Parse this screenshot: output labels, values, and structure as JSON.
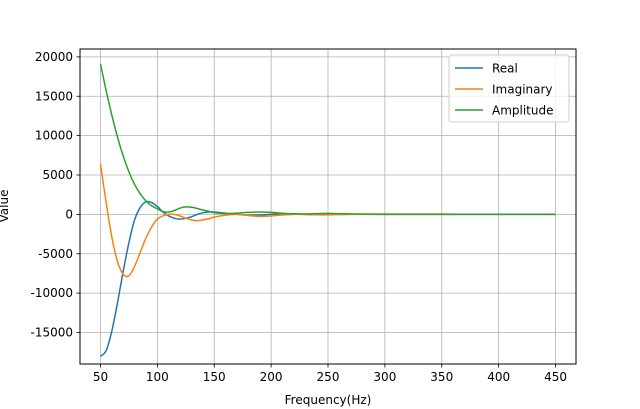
{
  "chart_data": {
    "type": "line",
    "title": "",
    "xlabel": "Frequency(Hz)",
    "ylabel": "Value",
    "xlim": [
      32,
      468
    ],
    "ylim": [
      -19000,
      21000
    ],
    "grid": true,
    "legend_position": "top-right",
    "x_ticks": [
      50,
      100,
      150,
      200,
      250,
      300,
      350,
      400,
      450
    ],
    "y_ticks": [
      -15000,
      -10000,
      -5000,
      0,
      5000,
      10000,
      15000,
      20000
    ],
    "x": [
      50,
      55,
      60,
      65,
      70,
      75,
      80,
      85,
      90,
      95,
      100,
      105,
      110,
      115,
      120,
      125,
      130,
      135,
      140,
      145,
      150,
      160,
      170,
      180,
      190,
      200,
      210,
      220,
      230,
      240,
      250,
      260,
      270,
      280,
      300,
      325,
      350,
      375,
      400,
      425,
      450
    ],
    "series": [
      {
        "name": "Real",
        "color": "#1f77b4",
        "values": [
          -18000,
          -17300,
          -14800,
          -11200,
          -7200,
          -3600,
          -700,
          900,
          1600,
          1500,
          1000,
          300,
          -200,
          -500,
          -600,
          -500,
          -300,
          0,
          200,
          300,
          300,
          150,
          0,
          -100,
          -80,
          0,
          60,
          40,
          0,
          -30,
          -20,
          0,
          20,
          10,
          0,
          0,
          0,
          0,
          0,
          0,
          0
        ]
      },
      {
        "name": "Imaginary",
        "color": "#ff7f0e",
        "values": [
          6400,
          1500,
          -2900,
          -6000,
          -7600,
          -7800,
          -6600,
          -4800,
          -3000,
          -1600,
          -600,
          -200,
          0,
          0,
          -200,
          -500,
          -700,
          -800,
          -700,
          -550,
          -350,
          -100,
          0,
          -150,
          -250,
          -200,
          -80,
          0,
          0,
          -50,
          -60,
          -20,
          0,
          0,
          0,
          0,
          0,
          0,
          0,
          0,
          0
        ]
      },
      {
        "name": "Amplitude",
        "color": "#2ca02c",
        "values": [
          19100,
          15700,
          12600,
          9800,
          7400,
          5400,
          3800,
          2600,
          1700,
          1100,
          700,
          350,
          300,
          500,
          800,
          950,
          900,
          750,
          550,
          400,
          200,
          100,
          150,
          250,
          300,
          250,
          150,
          80,
          60,
          100,
          120,
          90,
          60,
          40,
          30,
          30,
          30,
          20,
          20,
          20,
          20
        ]
      }
    ]
  }
}
